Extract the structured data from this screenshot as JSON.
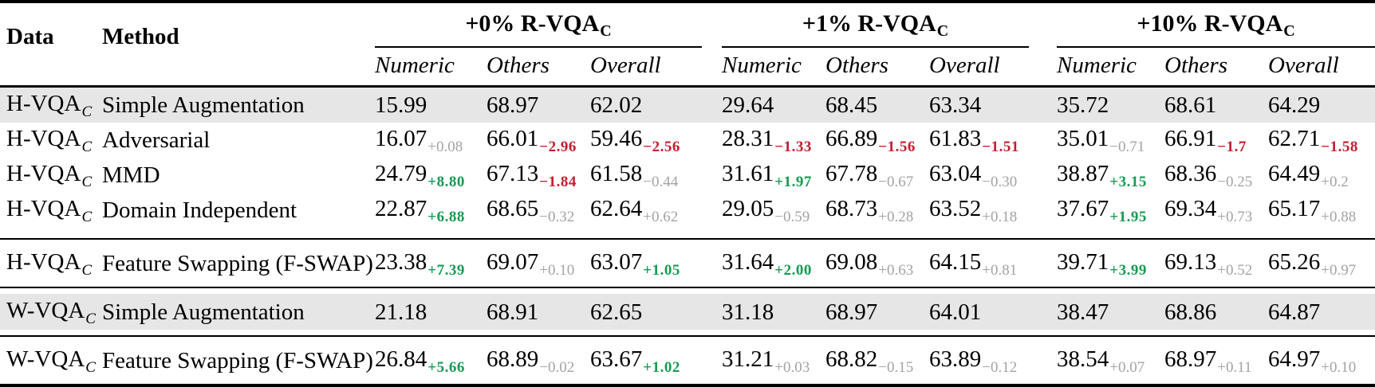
{
  "colors": {
    "green": "#169b52",
    "red": "#c41d2f",
    "gray": "#a3a3a3",
    "row_shade": "#e6e6e6",
    "text": "#000000",
    "rule": "#000000"
  },
  "header": {
    "data_label": "Data",
    "method_label": "Method",
    "groups": [
      {
        "label": "+0% R-VQA",
        "sub": "C"
      },
      {
        "label": "+1% R-VQA",
        "sub": "C"
      },
      {
        "label": "+10% R-VQA",
        "sub": "C"
      }
    ],
    "metrics": [
      "Numeric",
      "Others",
      "Overall"
    ]
  },
  "rows": [
    {
      "data": "H-VQA",
      "data_sub": "C",
      "method": "Simple Augmentation",
      "shaded": true,
      "rule_above": false,
      "cells": [
        {
          "value": "15.99"
        },
        {
          "value": "68.97"
        },
        {
          "value": "62.02"
        },
        {
          "value": "29.64"
        },
        {
          "value": "68.45"
        },
        {
          "value": "63.34"
        },
        {
          "value": "35.72"
        },
        {
          "value": "68.61"
        },
        {
          "value": "64.29"
        }
      ]
    },
    {
      "data": "H-VQA",
      "data_sub": "C",
      "method": "Adversarial",
      "shaded": false,
      "rule_above": false,
      "cells": [
        {
          "value": "16.07",
          "delta": "+0.08",
          "delta_color": "gray"
        },
        {
          "value": "66.01",
          "delta": "−2.96",
          "delta_color": "red"
        },
        {
          "value": "59.46",
          "delta": "−2.56",
          "delta_color": "red"
        },
        {
          "value": "28.31",
          "delta": "−1.33",
          "delta_color": "red"
        },
        {
          "value": "66.89",
          "delta": "−1.56",
          "delta_color": "red"
        },
        {
          "value": "61.83",
          "delta": "−1.51",
          "delta_color": "red"
        },
        {
          "value": "35.01",
          "delta": "−0.71",
          "delta_color": "gray"
        },
        {
          "value": "66.91",
          "delta": "−1.7",
          "delta_color": "red"
        },
        {
          "value": "62.71",
          "delta": "−1.58",
          "delta_color": "red"
        }
      ]
    },
    {
      "data": "H-VQA",
      "data_sub": "C",
      "method": "MMD",
      "shaded": false,
      "rule_above": false,
      "cells": [
        {
          "value": "24.79",
          "delta": "+8.80",
          "delta_color": "green"
        },
        {
          "value": "67.13",
          "delta": "−1.84",
          "delta_color": "red"
        },
        {
          "value": "61.58",
          "delta": "−0.44",
          "delta_color": "gray"
        },
        {
          "value": "31.61",
          "delta": "+1.97",
          "delta_color": "green"
        },
        {
          "value": "67.78",
          "delta": "−0.67",
          "delta_color": "gray"
        },
        {
          "value": "63.04",
          "delta": "−0.30",
          "delta_color": "gray"
        },
        {
          "value": "38.87",
          "delta": "+3.15",
          "delta_color": "green"
        },
        {
          "value": "68.36",
          "delta": "−0.25",
          "delta_color": "gray"
        },
        {
          "value": "64.49",
          "delta": "+0.2",
          "delta_color": "gray"
        }
      ]
    },
    {
      "data": "H-VQA",
      "data_sub": "C",
      "method": "Domain Independent",
      "shaded": false,
      "rule_above": false,
      "cells": [
        {
          "value": "22.87",
          "delta": "+6.88",
          "delta_color": "green"
        },
        {
          "value": "68.65",
          "delta": "−0.32",
          "delta_color": "gray"
        },
        {
          "value": "62.64",
          "delta": "+0.62",
          "delta_color": "gray"
        },
        {
          "value": "29.05",
          "delta": "−0.59",
          "delta_color": "gray"
        },
        {
          "value": "68.73",
          "delta": "+0.28",
          "delta_color": "gray"
        },
        {
          "value": "63.52",
          "delta": "+0.18",
          "delta_color": "gray"
        },
        {
          "value": "37.67",
          "delta": "+1.95",
          "delta_color": "green"
        },
        {
          "value": "69.34",
          "delta": "+0.73",
          "delta_color": "gray"
        },
        {
          "value": "65.17",
          "delta": "+0.88",
          "delta_color": "gray"
        }
      ]
    },
    {
      "data": "H-VQA",
      "data_sub": "C",
      "method": "Feature Swapping (F-SWAP)",
      "shaded": false,
      "rule_above": true,
      "cells": [
        {
          "value": "23.38",
          "delta": "+7.39",
          "delta_color": "green"
        },
        {
          "value": "69.07",
          "delta": "+0.10",
          "delta_color": "gray"
        },
        {
          "value": "63.07",
          "delta": "+1.05",
          "delta_color": "green"
        },
        {
          "value": "31.64",
          "delta": "+2.00",
          "delta_color": "green"
        },
        {
          "value": "69.08",
          "delta": "+0.63",
          "delta_color": "gray"
        },
        {
          "value": "64.15",
          "delta": "+0.81",
          "delta_color": "gray"
        },
        {
          "value": "39.71",
          "delta": "+3.99",
          "delta_color": "green"
        },
        {
          "value": "69.13",
          "delta": "+0.52",
          "delta_color": "gray"
        },
        {
          "value": "65.26",
          "delta": "+0.97",
          "delta_color": "gray"
        }
      ]
    },
    {
      "data": "W-VQA",
      "data_sub": "C",
      "method": "Simple Augmentation",
      "shaded": true,
      "rule_above": true,
      "cells": [
        {
          "value": "21.18"
        },
        {
          "value": "68.91"
        },
        {
          "value": "62.65"
        },
        {
          "value": "31.18"
        },
        {
          "value": "68.97"
        },
        {
          "value": "64.01"
        },
        {
          "value": "38.47"
        },
        {
          "value": "68.86"
        },
        {
          "value": "64.87"
        }
      ]
    },
    {
      "data": "W-VQA",
      "data_sub": "C",
      "method": "Feature Swapping (F-SWAP)",
      "shaded": false,
      "rule_above": true,
      "cells": [
        {
          "value": "26.84",
          "delta": "+5.66",
          "delta_color": "green"
        },
        {
          "value": "68.89",
          "delta": "−0.02",
          "delta_color": "gray"
        },
        {
          "value": "63.67",
          "delta": "+1.02",
          "delta_color": "green"
        },
        {
          "value": "31.21",
          "delta": "+0.03",
          "delta_color": "gray"
        },
        {
          "value": "68.82",
          "delta": "−0.15",
          "delta_color": "gray"
        },
        {
          "value": "63.89",
          "delta": "−0.12",
          "delta_color": "gray"
        },
        {
          "value": "38.54",
          "delta": "+0.07",
          "delta_color": "gray"
        },
        {
          "value": "68.97",
          "delta": "+0.11",
          "delta_color": "gray"
        },
        {
          "value": "64.97",
          "delta": "+0.10",
          "delta_color": "gray"
        }
      ]
    }
  ]
}
